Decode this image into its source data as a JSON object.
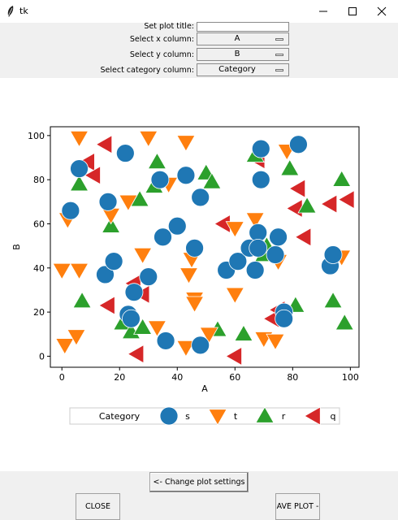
{
  "window": {
    "title": "tk"
  },
  "controls": {
    "plot_title_label": "Set plot title:",
    "plot_title_value": "",
    "x_label": "Select x column:",
    "x_value": "A",
    "y_label": "Select y column:",
    "y_value": "B",
    "category_label": "Select category column:",
    "category_value": "Category"
  },
  "buttons": {
    "change_settings": "<- Change plot settings",
    "close": "CLOSE",
    "save_plot": "AVE PLOT -"
  },
  "chart_data": {
    "type": "scatter",
    "title": "",
    "xlabel": "A",
    "ylabel": "B",
    "xlim": [
      -4,
      103
    ],
    "ylim": [
      -5,
      104
    ],
    "x_ticks": [
      0,
      20,
      40,
      60,
      80,
      100
    ],
    "y_ticks": [
      0,
      20,
      40,
      60,
      80,
      100
    ],
    "grid": false,
    "legend": {
      "title": "Category",
      "placement": "below-plot"
    },
    "series": [
      {
        "name": "s",
        "marker": "circle",
        "color": "#1f77b4",
        "points": [
          [
            3,
            66
          ],
          [
            6,
            85
          ],
          [
            16,
            70
          ],
          [
            22,
            92
          ],
          [
            15,
            37
          ],
          [
            18,
            43
          ],
          [
            23,
            19
          ],
          [
            24,
            17
          ],
          [
            25,
            29
          ],
          [
            30,
            36
          ],
          [
            34,
            80
          ],
          [
            35,
            54
          ],
          [
            36,
            7
          ],
          [
            40,
            59
          ],
          [
            43,
            82
          ],
          [
            46,
            49
          ],
          [
            48,
            72
          ],
          [
            48,
            5
          ],
          [
            57,
            39
          ],
          [
            61,
            43
          ],
          [
            65,
            49
          ],
          [
            67,
            39
          ],
          [
            68,
            56
          ],
          [
            68,
            49
          ],
          [
            69,
            94
          ],
          [
            69,
            80
          ],
          [
            74,
            46
          ],
          [
            75,
            54
          ],
          [
            77,
            20
          ],
          [
            77,
            17
          ],
          [
            82,
            96
          ],
          [
            93,
            41
          ],
          [
            94,
            46
          ]
        ]
      },
      {
        "name": "t",
        "marker": "triangle-down",
        "color": "#ff7f0e",
        "points": [
          [
            2,
            62
          ],
          [
            0,
            39
          ],
          [
            1,
            5
          ],
          [
            5,
            9
          ],
          [
            6,
            39
          ],
          [
            6,
            99
          ],
          [
            17,
            64
          ],
          [
            23,
            70
          ],
          [
            28,
            46
          ],
          [
            30,
            99
          ],
          [
            33,
            13
          ],
          [
            37,
            78
          ],
          [
            43,
            97
          ],
          [
            43,
            4
          ],
          [
            44,
            37
          ],
          [
            45,
            44
          ],
          [
            46,
            26
          ],
          [
            46,
            24
          ],
          [
            51,
            10
          ],
          [
            60,
            28
          ],
          [
            60,
            58
          ],
          [
            67,
            62
          ],
          [
            70,
            8
          ],
          [
            74,
            7
          ],
          [
            75,
            43
          ],
          [
            78,
            93
          ],
          [
            97,
            45
          ]
        ]
      },
      {
        "name": "r",
        "marker": "triangle-up",
        "color": "#2ca02c",
        "points": [
          [
            6,
            78
          ],
          [
            7,
            25
          ],
          [
            17,
            59
          ],
          [
            21,
            15
          ],
          [
            24,
            11
          ],
          [
            27,
            71
          ],
          [
            28,
            13
          ],
          [
            32,
            77
          ],
          [
            33,
            88
          ],
          [
            50,
            83
          ],
          [
            52,
            79
          ],
          [
            54,
            12
          ],
          [
            63,
            10
          ],
          [
            67,
            91
          ],
          [
            70,
            46
          ],
          [
            71,
            50
          ],
          [
            79,
            85
          ],
          [
            81,
            23
          ],
          [
            85,
            68
          ],
          [
            94,
            25
          ],
          [
            97,
            80
          ],
          [
            98,
            15
          ]
        ]
      },
      {
        "name": "q",
        "marker": "triangle-left",
        "color": "#d62728",
        "points": [
          [
            9,
            88
          ],
          [
            11,
            82
          ],
          [
            15,
            96
          ],
          [
            16,
            23
          ],
          [
            25,
            33
          ],
          [
            26,
            1
          ],
          [
            28,
            28
          ],
          [
            56,
            60
          ],
          [
            60,
            0
          ],
          [
            68,
            89
          ],
          [
            73,
            17
          ],
          [
            75,
            21
          ],
          [
            81,
            67
          ],
          [
            82,
            76
          ],
          [
            84,
            54
          ],
          [
            93,
            69
          ],
          [
            99,
            71
          ]
        ]
      }
    ]
  }
}
